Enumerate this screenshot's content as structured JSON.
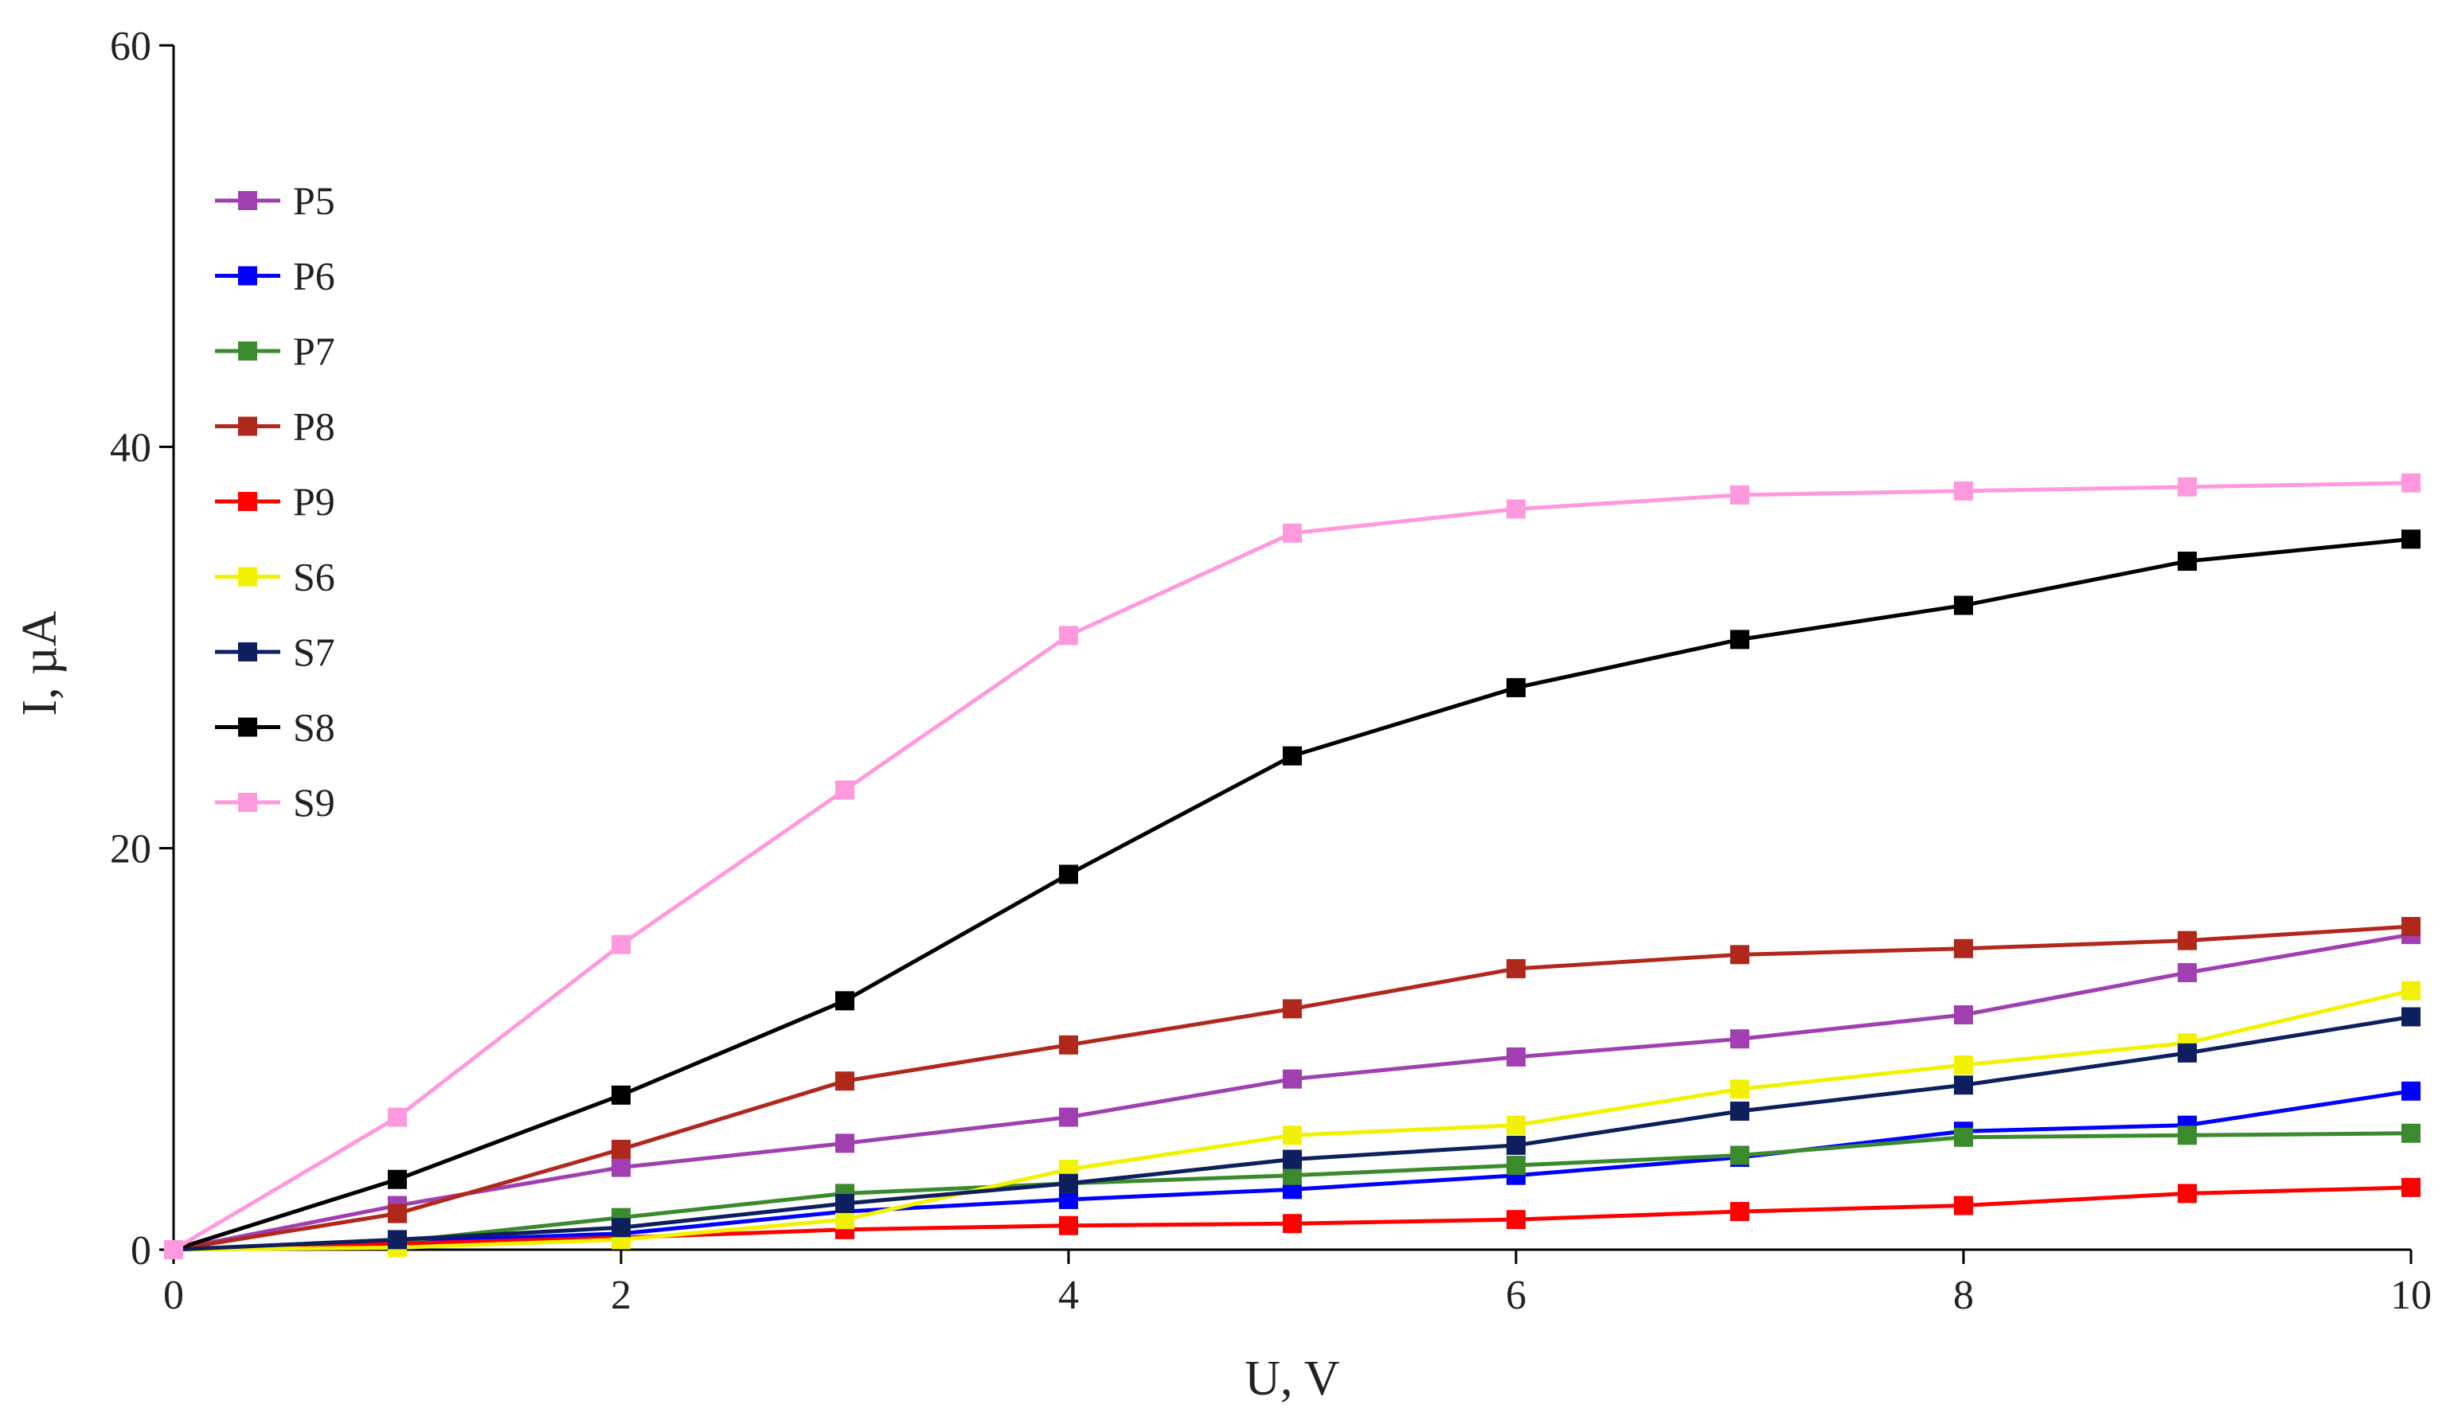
{
  "chart_data": {
    "type": "line",
    "title": "",
    "xlabel": "U, V",
    "ylabel": "I, µA",
    "xlim": [
      0,
      10
    ],
    "ylim": [
      0,
      60
    ],
    "xticks": [
      0,
      2,
      4,
      6,
      8,
      10
    ],
    "yticks": [
      0,
      20,
      40,
      60
    ],
    "grid": false,
    "legend_position": "top-left",
    "x": [
      0,
      1,
      2,
      3,
      4,
      5,
      6,
      7,
      8,
      9,
      10
    ],
    "series": [
      {
        "name": "P5",
        "color": "#a040b0",
        "values": [
          0,
          2.2,
          4.1,
          5.3,
          6.6,
          8.5,
          9.6,
          10.5,
          11.7,
          13.8,
          15.7
        ]
      },
      {
        "name": "P6",
        "color": "#0000ff",
        "values": [
          0,
          0.4,
          0.8,
          1.9,
          2.5,
          3.0,
          3.7,
          4.6,
          5.9,
          6.2,
          7.9
        ]
      },
      {
        "name": "P7",
        "color": "#3b8a2e",
        "values": [
          0,
          0.4,
          1.6,
          2.8,
          3.3,
          3.7,
          4.2,
          4.7,
          5.6,
          5.7,
          5.8
        ]
      },
      {
        "name": "P8",
        "color": "#b0281c",
        "values": [
          0,
          1.8,
          5.0,
          8.4,
          10.2,
          12.0,
          14.0,
          14.7,
          15.0,
          15.4,
          16.1
        ]
      },
      {
        "name": "P9",
        "color": "#ff0000",
        "values": [
          0,
          0.3,
          0.6,
          1.0,
          1.2,
          1.3,
          1.5,
          1.9,
          2.2,
          2.8,
          3.1
        ]
      },
      {
        "name": "S6",
        "color": "#f2f200",
        "values": [
          0,
          0.1,
          0.5,
          1.5,
          4.0,
          5.7,
          6.2,
          8.0,
          9.2,
          10.3,
          12.9
        ]
      },
      {
        "name": "S7",
        "color": "#0d1f5c",
        "values": [
          0,
          0.5,
          1.1,
          2.3,
          3.3,
          4.5,
          5.2,
          6.9,
          8.2,
          9.8,
          11.6
        ]
      },
      {
        "name": "S8",
        "color": "#000000",
        "values": [
          0,
          3.5,
          7.7,
          12.4,
          18.7,
          24.6,
          28.0,
          30.4,
          32.1,
          34.3,
          35.4
        ]
      },
      {
        "name": "S9",
        "color": "#ff99dd",
        "values": [
          0,
          6.6,
          15.2,
          22.9,
          30.6,
          35.7,
          36.9,
          37.6,
          37.8,
          38.0,
          38.2
        ]
      }
    ]
  }
}
